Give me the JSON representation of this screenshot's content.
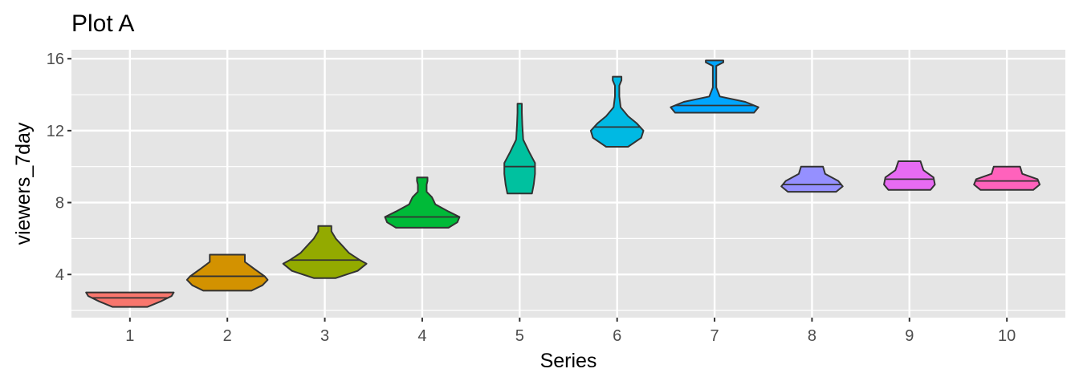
{
  "chart_data": {
    "type": "violin",
    "title": "Plot A",
    "xlabel": "Series",
    "ylabel": "viewers_7day",
    "ylim": [
      1.6,
      16.5
    ],
    "yticks": [
      4,
      8,
      12,
      16
    ],
    "grid": true,
    "legend": "none",
    "categories": [
      "1",
      "2",
      "3",
      "4",
      "5",
      "6",
      "7",
      "8",
      "9",
      "10"
    ],
    "series": [
      {
        "category": "1",
        "color": "#F8766D",
        "min": 2.2,
        "max": 3.0,
        "median": 2.7,
        "profile": [
          [
            2.2,
            0.4
          ],
          [
            2.5,
            0.7
          ],
          [
            2.8,
            0.95
          ],
          [
            3.0,
            1.0
          ]
        ]
      },
      {
        "category": "2",
        "color": "#D39200",
        "min": 3.1,
        "max": 5.1,
        "median": 3.9,
        "profile": [
          [
            3.1,
            0.55
          ],
          [
            3.4,
            0.8
          ],
          [
            3.7,
            0.92
          ],
          [
            3.9,
            0.85
          ],
          [
            4.3,
            0.62
          ],
          [
            4.7,
            0.4
          ],
          [
            5.1,
            0.4
          ]
        ]
      },
      {
        "category": "3",
        "color": "#93AA00",
        "min": 3.8,
        "max": 6.7,
        "median": 4.8,
        "profile": [
          [
            3.8,
            0.25
          ],
          [
            4.2,
            0.75
          ],
          [
            4.6,
            0.95
          ],
          [
            4.8,
            0.8
          ],
          [
            5.2,
            0.55
          ],
          [
            5.6,
            0.4
          ],
          [
            6.0,
            0.25
          ],
          [
            6.4,
            0.15
          ],
          [
            6.7,
            0.15
          ]
        ]
      },
      {
        "category": "4",
        "color": "#00BA38",
        "min": 6.6,
        "max": 9.4,
        "median": 7.2,
        "profile": [
          [
            6.6,
            0.6
          ],
          [
            6.9,
            0.8
          ],
          [
            7.2,
            0.85
          ],
          [
            7.5,
            0.6
          ],
          [
            7.9,
            0.3
          ],
          [
            8.3,
            0.22
          ],
          [
            8.6,
            0.1
          ],
          [
            9.0,
            0.1
          ],
          [
            9.2,
            0.12
          ],
          [
            9.4,
            0.12
          ]
        ]
      },
      {
        "category": "5",
        "color": "#00C19F",
        "min": 8.5,
        "max": 13.5,
        "median": 10.0,
        "profile": [
          [
            8.5,
            0.28
          ],
          [
            9.0,
            0.32
          ],
          [
            9.6,
            0.35
          ],
          [
            10.2,
            0.35
          ],
          [
            10.8,
            0.22
          ],
          [
            11.5,
            0.08
          ],
          [
            12.3,
            0.06
          ],
          [
            13.0,
            0.05
          ],
          [
            13.5,
            0.05
          ]
        ]
      },
      {
        "category": "6",
        "color": "#00B9E3",
        "min": 11.1,
        "max": 15.0,
        "median": 12.2,
        "profile": [
          [
            11.1,
            0.25
          ],
          [
            11.6,
            0.55
          ],
          [
            12.0,
            0.6
          ],
          [
            12.4,
            0.45
          ],
          [
            12.8,
            0.25
          ],
          [
            13.3,
            0.08
          ],
          [
            13.9,
            0.05
          ],
          [
            14.5,
            0.05
          ],
          [
            14.8,
            0.1
          ],
          [
            15.0,
            0.1
          ]
        ]
      },
      {
        "category": "7",
        "color": "#00A5FF",
        "min": 13.0,
        "max": 15.9,
        "median": 13.4,
        "profile": [
          [
            13.0,
            0.9
          ],
          [
            13.3,
            1.0
          ],
          [
            13.6,
            0.7
          ],
          [
            13.9,
            0.12
          ],
          [
            14.4,
            0.04
          ],
          [
            15.0,
            0.04
          ],
          [
            15.6,
            0.04
          ],
          [
            15.8,
            0.2
          ],
          [
            15.9,
            0.2
          ]
        ]
      },
      {
        "category": "8",
        "color": "#9590FF",
        "min": 8.6,
        "max": 10.0,
        "median": 9.0,
        "profile": [
          [
            8.6,
            0.55
          ],
          [
            8.9,
            0.7
          ],
          [
            9.2,
            0.6
          ],
          [
            9.6,
            0.3
          ],
          [
            10.0,
            0.25
          ]
        ]
      },
      {
        "category": "9",
        "color": "#E76BF3",
        "min": 8.7,
        "max": 10.3,
        "median": 9.3,
        "profile": [
          [
            8.7,
            0.48
          ],
          [
            9.0,
            0.58
          ],
          [
            9.4,
            0.55
          ],
          [
            9.8,
            0.32
          ],
          [
            10.3,
            0.25
          ]
        ]
      },
      {
        "category": "10",
        "color": "#FF62BC",
        "min": 8.7,
        "max": 10.0,
        "median": 9.2,
        "profile": [
          [
            8.7,
            0.6
          ],
          [
            9.0,
            0.75
          ],
          [
            9.3,
            0.7
          ],
          [
            9.6,
            0.35
          ],
          [
            10.0,
            0.3
          ]
        ]
      }
    ]
  }
}
